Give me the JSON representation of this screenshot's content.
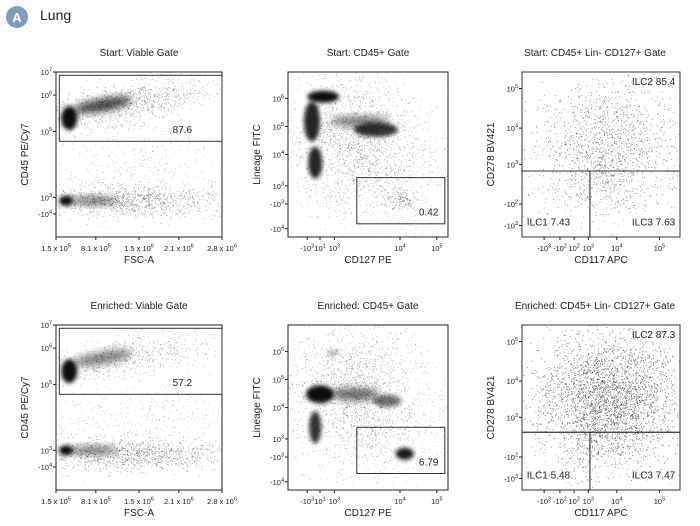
{
  "header": {
    "badge": "A",
    "title": "Lung"
  },
  "chart_data": [
    {
      "type": "scatter",
      "title": "Start: Viable Gate",
      "xlabel": "FSC-A",
      "ylabel": "CD45 PE/Cy7",
      "xticks": [
        {
          "m": "1.5 x 10",
          "e": "5"
        },
        {
          "m": "8.1 x 10",
          "e": "5"
        },
        {
          "m": "1.5 x 10",
          "e": "6"
        },
        {
          "m": "2.1 x 10",
          "e": "6"
        },
        {
          "m": "2.8 x 10",
          "e": "6"
        }
      ],
      "yticks": [
        {
          "m": "10",
          "e": "7"
        },
        {
          "m": "10",
          "e": "6"
        },
        {
          "m": "10",
          "e": "5"
        },
        {
          "m": "10",
          "e": "3"
        },
        {
          "m": "-10",
          "e": "4"
        }
      ],
      "gates": [
        {
          "label": "87.6"
        }
      ]
    },
    {
      "type": "scatter",
      "title": "Start: CD45+ Gate",
      "xlabel": "CD127 PE",
      "ylabel": "Lineage FITC",
      "xticks": [
        {
          "m": "-10",
          "e": "3"
        },
        {
          "m": "10",
          "e": "1"
        },
        {
          "m": "10",
          "e": "3"
        },
        {
          "m": "10",
          "e": "4"
        },
        {
          "m": "10",
          "e": "5"
        }
      ],
      "yticks": [
        {
          "m": "10",
          "e": "6"
        },
        {
          "m": "10",
          "e": "5"
        },
        {
          "m": "10",
          "e": "4"
        },
        {
          "m": "10",
          "e": "3"
        },
        {
          "m": "-10",
          "e": "3"
        },
        {
          "m": "-10",
          "e": "4"
        }
      ],
      "gates": [
        {
          "label": "0.42"
        }
      ]
    },
    {
      "type": "scatter",
      "title": "Start: CD45+ Lin- CD127+ Gate",
      "xlabel": "CD117 APC",
      "ylabel": "CD278 BV421",
      "xticks": [
        {
          "m": "-10",
          "e": "3"
        },
        {
          "m": "-10",
          "e": "2"
        },
        {
          "m": "10",
          "e": "2"
        },
        {
          "m": "10",
          "e": "3"
        },
        {
          "m": "10",
          "e": "4"
        },
        {
          "m": "10",
          "e": "5"
        }
      ],
      "yticks": [
        {
          "m": "10",
          "e": "5"
        },
        {
          "m": "10",
          "e": "4"
        },
        {
          "m": "10",
          "e": "3"
        },
        {
          "m": "-10",
          "e": "2"
        },
        {
          "m": "-10",
          "e": "3"
        }
      ],
      "gates": [
        {
          "label": "ILC2 85.4"
        },
        {
          "label": "ILC1 7.43"
        },
        {
          "label": "ILC3 7.63"
        }
      ]
    },
    {
      "type": "scatter",
      "title": "Enriched: Viable Gate",
      "xlabel": "FSC-A",
      "ylabel": "CD45 PE/Cy7",
      "xticks": [
        {
          "m": "1.5 x 10",
          "e": "5"
        },
        {
          "m": "8.1 x 10",
          "e": "5"
        },
        {
          "m": "1.5 x 10",
          "e": "6"
        },
        {
          "m": "2.1 x 10",
          "e": "6"
        },
        {
          "m": "2.8 x 10",
          "e": "6"
        }
      ],
      "yticks": [
        {
          "m": "10",
          "e": "7"
        },
        {
          "m": "10",
          "e": "6"
        },
        {
          "m": "10",
          "e": "5"
        },
        {
          "m": "10",
          "e": "3"
        },
        {
          "m": "-10",
          "e": "4"
        }
      ],
      "gates": [
        {
          "label": "57.2"
        }
      ]
    },
    {
      "type": "scatter",
      "title": "Enriched: CD45+ Gate",
      "xlabel": "CD127 PE",
      "ylabel": "Lineage FITC",
      "xticks": [
        {
          "m": "-10",
          "e": "3"
        },
        {
          "m": "10",
          "e": "1"
        },
        {
          "m": "10",
          "e": "3"
        },
        {
          "m": "10",
          "e": "4"
        },
        {
          "m": "10",
          "e": "5"
        }
      ],
      "yticks": [
        {
          "m": "10",
          "e": "6"
        },
        {
          "m": "10",
          "e": "5"
        },
        {
          "m": "10",
          "e": "4"
        },
        {
          "m": "10",
          "e": "3"
        },
        {
          "m": "-10",
          "e": "3"
        },
        {
          "m": "-10",
          "e": "4"
        }
      ],
      "gates": [
        {
          "label": "6.79"
        }
      ]
    },
    {
      "type": "scatter",
      "title": "Enriched: CD45+ Lin- CD127+ Gate",
      "xlabel": "CD117 APC",
      "ylabel": "CD278 BV421",
      "xticks": [
        {
          "m": "-10",
          "e": "3"
        },
        {
          "m": "-10",
          "e": "2"
        },
        {
          "m": "10",
          "e": "2"
        },
        {
          "m": "10",
          "e": "3"
        },
        {
          "m": "10",
          "e": "4"
        },
        {
          "m": "10",
          "e": "5"
        }
      ],
      "yticks": [
        {
          "m": "10",
          "e": "5"
        },
        {
          "m": "10",
          "e": "4"
        },
        {
          "m": "10",
          "e": "3"
        },
        {
          "m": "-10",
          "e": "2"
        },
        {
          "m": "-10",
          "e": "3"
        }
      ],
      "gates": [
        {
          "label": "ILC2 87.3"
        },
        {
          "label": "ILC1 5.48"
        },
        {
          "label": "ILC3 7.47"
        }
      ]
    }
  ]
}
